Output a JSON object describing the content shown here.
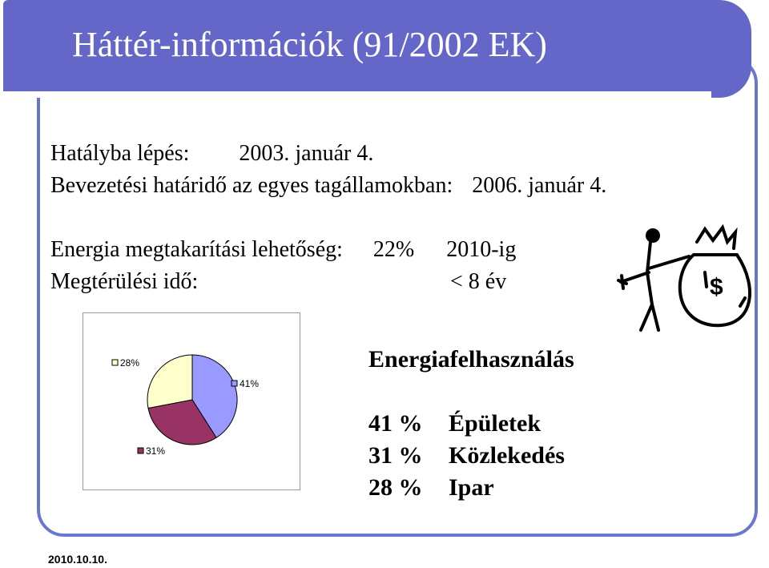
{
  "slide": {
    "title": "Háttér-információk (91/2002 EK)",
    "line1_label": "Hatályba lépés:",
    "line1_value": "2003. január 4.",
    "line2_label": "Bevezetési határidő az egyes tagállamokban:",
    "line2_value": "2006. január 4.",
    "line3_label": "Energia megtakarítási lehetőség:",
    "line3_value": "22%",
    "line3_suffix": "2010-ig",
    "line4_label": "Megtérülési idő:",
    "line4_value": "< 8 év",
    "footer_date": "2010.10.10."
  },
  "legend": {
    "title": "Energiafelhasználás",
    "rows": [
      {
        "pct": "41 %",
        "label": "Épületek"
      },
      {
        "pct": "31 %",
        "label": "Közlekedés"
      },
      {
        "pct": "28 %",
        "label": "Ipar"
      }
    ]
  },
  "colors": {
    "title_bar": "#6467c8",
    "frame": "#6a78cc",
    "slice_buildings": "#9999ff",
    "slice_transport": "#993366",
    "slice_industry": "#ffffcc"
  },
  "clipart": {
    "symbol": "$"
  },
  "chart_data": {
    "type": "pie",
    "categories": [
      "Épületek",
      "Közlekedés",
      "Ipar"
    ],
    "values": [
      41,
      31,
      28
    ],
    "labels": [
      "41%",
      "31%",
      "28%"
    ],
    "colors": [
      "#9999ff",
      "#993366",
      "#ffffcc"
    ]
  }
}
